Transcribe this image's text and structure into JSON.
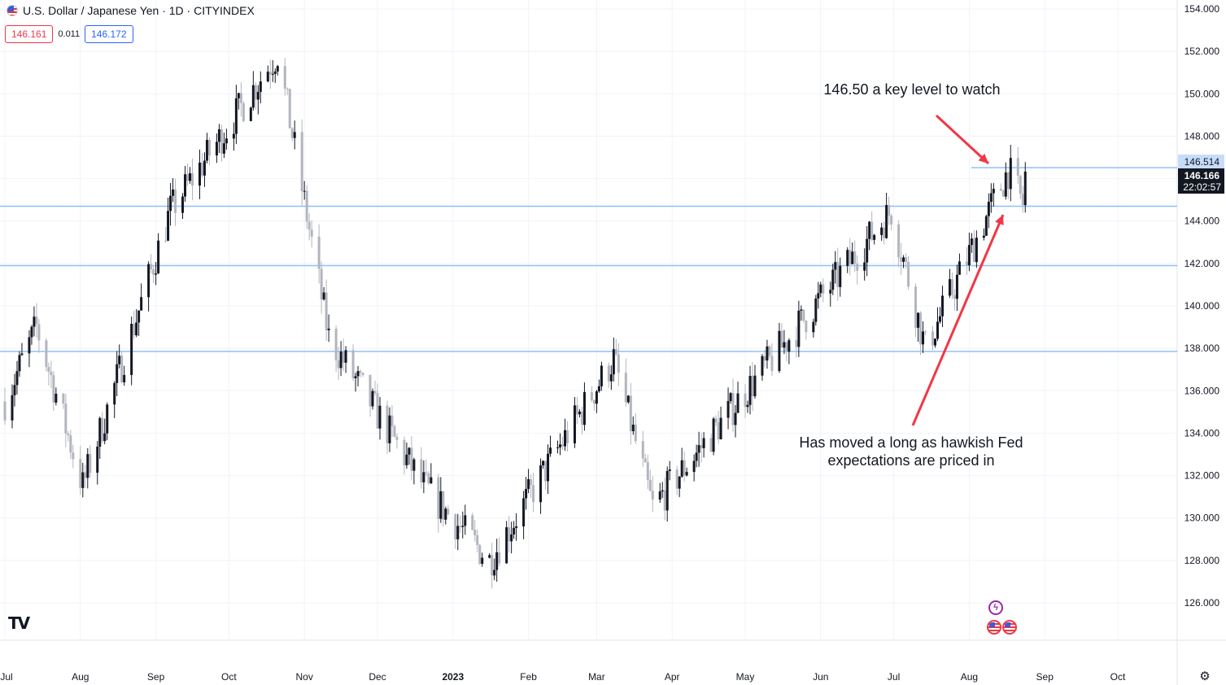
{
  "header": {
    "symbol_title": "U.S. Dollar / Japanese Yen · 1D · CITYINDEX",
    "sell_price": "146.161",
    "spread": "0.011",
    "buy_price": "146.172"
  },
  "annotations": {
    "top_note": "146.50 a key level to watch",
    "bottom_note_line1": "Has moved a long as hawkish Fed",
    "bottom_note_line2": "expectations are priced in"
  },
  "price_labels": {
    "resistance_label": "146.514",
    "last_price": "146.166",
    "countdown": "22:02:57"
  },
  "colors": {
    "up_candle": "#131722",
    "down_candle": "#b2b5be",
    "level_line": "#90bff9",
    "arrow": "#f23645",
    "grid": "#f0f3fa"
  },
  "chart_data": {
    "type": "candlestick",
    "title": "U.S. Dollar / Japanese Yen · 1D · CITYINDEX",
    "y_ticks": [
      "154.000",
      "152.000",
      "150.000",
      "148.000",
      "146.000",
      "144.000",
      "142.000",
      "140.000",
      "138.000",
      "136.000",
      "134.000",
      "132.000",
      "130.000",
      "128.000",
      "126.000"
    ],
    "ylim": [
      124.8,
      154.5
    ],
    "x_ticks": [
      "Jul",
      "Aug",
      "Sep",
      "Oct",
      "Nov",
      "Dec",
      "2023",
      "Feb",
      "Mar",
      "Apr",
      "May",
      "Jun",
      "Jul",
      "Aug",
      "Sep",
      "Oct"
    ],
    "horizontal_levels": [
      146.514,
      144.7,
      141.9,
      137.85
    ],
    "key_points": [
      {
        "date": "2022-07-01",
        "close": 135.5
      },
      {
        "date": "2022-07-14",
        "close": 139.0
      },
      {
        "date": "2022-08-02",
        "close": 131.5
      },
      {
        "date": "2022-09-07",
        "close": 144.5
      },
      {
        "date": "2022-10-21",
        "close": 151.9
      },
      {
        "date": "2022-11-11",
        "close": 138.5
      },
      {
        "date": "2022-12-20",
        "close": 131.5
      },
      {
        "date": "2023-01-16",
        "close": 128.0
      },
      {
        "date": "2023-03-08",
        "close": 137.5
      },
      {
        "date": "2023-03-24",
        "close": 130.5
      },
      {
        "date": "2023-06-30",
        "close": 144.5
      },
      {
        "date": "2023-07-14",
        "close": 138.0
      },
      {
        "date": "2023-08-17",
        "close": 146.4
      },
      {
        "date": "2023-08-23",
        "close": 144.8
      },
      {
        "date": "2023-08-24",
        "close": 146.166
      }
    ]
  }
}
